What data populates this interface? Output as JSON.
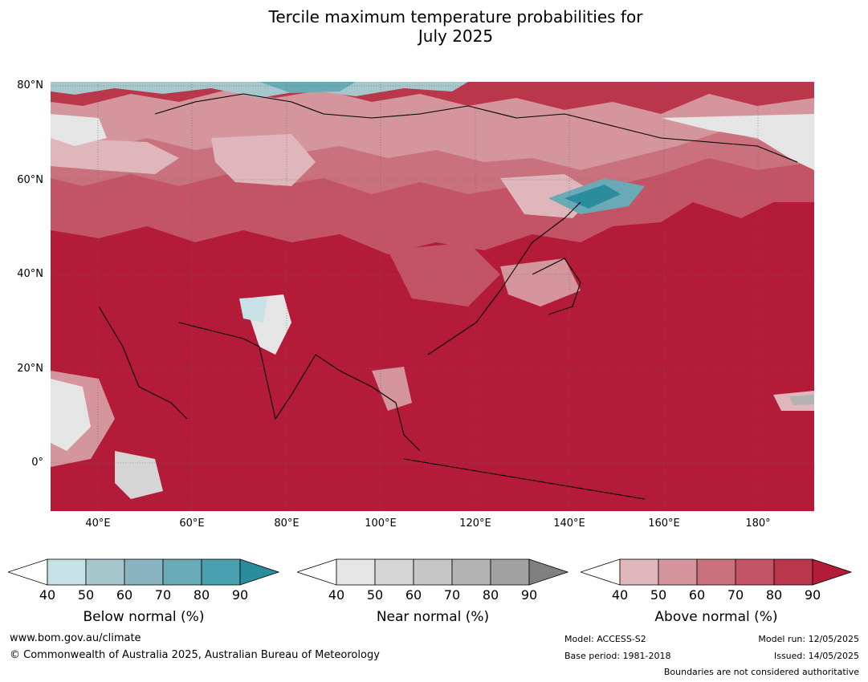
{
  "title": {
    "line1": "Tercile maximum temperature probabilities for",
    "line2": "July 2025"
  },
  "map": {
    "lat_labels": [
      "80°N",
      "60°N",
      "40°N",
      "20°N",
      "0°"
    ],
    "lon_labels": [
      "40°E",
      "60°E",
      "80°E",
      "100°E",
      "120°E",
      "140°E",
      "160°E",
      "180°"
    ],
    "extent": {
      "lon_min": 30,
      "lon_max": 192,
      "lat_min": -10,
      "lat_max": 80
    }
  },
  "colorbars": [
    {
      "name": "Below normal (%)",
      "ticks": [
        "40",
        "50",
        "60",
        "70",
        "80",
        "90"
      ],
      "colors": [
        "#ffffff",
        "#c8e1e7",
        "#a6c7cc",
        "#8ab4bf",
        "#6aaab6",
        "#48a0ae",
        "#2a8c9c"
      ]
    },
    {
      "name": "Near normal (%)",
      "ticks": [
        "40",
        "50",
        "60",
        "70",
        "80",
        "90"
      ],
      "colors": [
        "#ffffff",
        "#e5e5e5",
        "#d5d5d5",
        "#c6c6c6",
        "#b3b3b3",
        "#a2a2a2",
        "#808080"
      ]
    },
    {
      "name": "Above normal (%)",
      "ticks": [
        "40",
        "50",
        "60",
        "70",
        "80",
        "90"
      ],
      "colors": [
        "#ffffff",
        "#dfb6bc",
        "#d4959d",
        "#c9727e",
        "#c25466",
        "#b9364b",
        "#b31b39"
      ]
    }
  ],
  "footer": {
    "website": "www.bom.gov.au/climate",
    "copyright": "© Commonwealth of Australia 2025, Australian Bureau of Meteorology",
    "model": "Model: ACCESS-S2",
    "base_period": "Base period: 1981-2018",
    "model_run": "Model run: 12/05/2025",
    "issued": "Issued: 14/05/2025",
    "disclaimer": "Boundaries are not considered authoritative"
  }
}
